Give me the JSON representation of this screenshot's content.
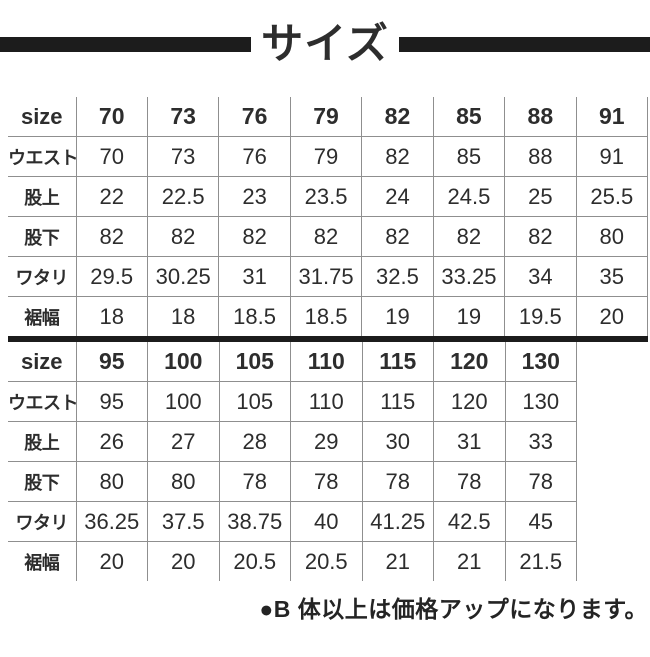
{
  "title": "サイズ",
  "footer_note": "●B 体以上は価格アップになります。",
  "colors": {
    "bar_black": "#1c1c1c",
    "text": "#2d2d2d",
    "grid_gray": "#8f8f8f",
    "background": "#ffffff"
  },
  "chart_data": [
    {
      "type": "table",
      "title": "サイズ (上段)",
      "header": {
        "label": "size",
        "sizes": [
          "70",
          "73",
          "76",
          "79",
          "82",
          "85",
          "88",
          "91"
        ]
      },
      "rows": [
        {
          "label": "ウエスト",
          "values": [
            "70",
            "73",
            "76",
            "79",
            "82",
            "85",
            "88",
            "91"
          ]
        },
        {
          "label": "股上",
          "values": [
            "22",
            "22.5",
            "23",
            "23.5",
            "24",
            "24.5",
            "25",
            "25.5"
          ]
        },
        {
          "label": "股下",
          "values": [
            "82",
            "82",
            "82",
            "82",
            "82",
            "82",
            "82",
            "80"
          ]
        },
        {
          "label": "ワタリ",
          "values": [
            "29.5",
            "30.25",
            "31",
            "31.75",
            "32.5",
            "33.25",
            "34",
            "35"
          ]
        },
        {
          "label": "裾幅",
          "values": [
            "18",
            "18",
            "18.5",
            "18.5",
            "19",
            "19",
            "19.5",
            "20"
          ]
        }
      ]
    },
    {
      "type": "table",
      "title": "サイズ (下段)",
      "header": {
        "label": "size",
        "sizes": [
          "95",
          "100",
          "105",
          "110",
          "115",
          "120",
          "130"
        ]
      },
      "rows": [
        {
          "label": "ウエスト",
          "values": [
            "95",
            "100",
            "105",
            "110",
            "115",
            "120",
            "130"
          ]
        },
        {
          "label": "股上",
          "values": [
            "26",
            "27",
            "28",
            "29",
            "30",
            "31",
            "33"
          ]
        },
        {
          "label": "股下",
          "values": [
            "80",
            "80",
            "78",
            "78",
            "78",
            "78",
            "78"
          ]
        },
        {
          "label": "ワタリ",
          "values": [
            "36.25",
            "37.5",
            "38.75",
            "40",
            "41.25",
            "42.5",
            "45"
          ]
        },
        {
          "label": "裾幅",
          "values": [
            "20",
            "20",
            "20.5",
            "20.5",
            "21",
            "21",
            "21.5"
          ]
        }
      ]
    }
  ]
}
